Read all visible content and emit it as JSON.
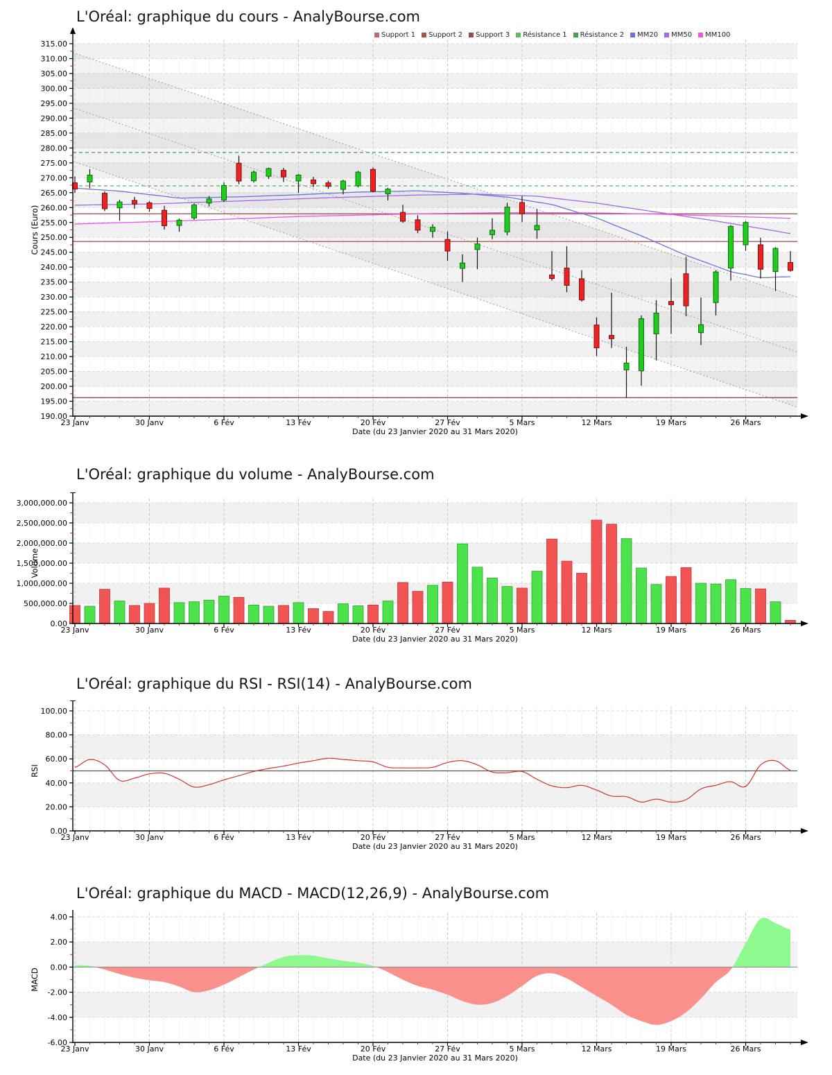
{
  "page": {
    "background": "#ffffff",
    "source_site": "AnalyBourse.com"
  },
  "chart_data": [
    {
      "type": "candlestick",
      "title": "L'Oréal: graphique du cours - AnalyBourse.com",
      "ylabel": "Cours (Euro)",
      "xlabel": "Date (du 23 Janvier 2020 au 31 Mars 2020)",
      "ylim": [
        190,
        315
      ],
      "y_step": 5,
      "y_minor_step": 2.5,
      "stripe_phase": 0,
      "x_tick_labels": [
        "23 Janv",
        "30 Janv",
        "6 Fév",
        "13 Fév",
        "20 Fév",
        "27 Fév",
        "5 Mars",
        "12 Mars",
        "19 Mars",
        "26 Mars"
      ],
      "x_tick_idx": [
        0,
        5,
        10,
        15,
        20,
        25,
        30,
        35,
        40,
        45
      ],
      "dates": [
        "23/01",
        "24/01",
        "27/01",
        "28/01",
        "29/01",
        "30/01",
        "31/01",
        "03/02",
        "04/02",
        "05/02",
        "06/02",
        "07/02",
        "10/02",
        "11/02",
        "12/02",
        "13/02",
        "14/02",
        "17/02",
        "18/02",
        "19/02",
        "20/02",
        "21/02",
        "24/02",
        "25/02",
        "26/02",
        "27/02",
        "28/02",
        "02/03",
        "03/03",
        "04/03",
        "05/03",
        "06/03",
        "09/03",
        "10/03",
        "11/03",
        "12/03",
        "13/03",
        "16/03",
        "17/03",
        "18/03",
        "19/03",
        "20/03",
        "23/03",
        "24/03",
        "25/03",
        "26/03",
        "27/03",
        "30/03",
        "31/03"
      ],
      "candles_ohlc": [
        [
          268.3,
          270.4,
          264.9,
          266.2
        ],
        [
          268.6,
          272.9,
          266.5,
          270.9
        ],
        [
          264.8,
          265.4,
          258.8,
          259.6
        ],
        [
          259.9,
          262.6,
          255.6,
          261.9
        ],
        [
          262.4,
          263.6,
          259.6,
          261.2
        ],
        [
          261.6,
          262.1,
          258.6,
          259.7
        ],
        [
          259.1,
          260.6,
          252.6,
          253.9
        ],
        [
          254.0,
          256.3,
          251.9,
          255.8
        ],
        [
          256.5,
          261.4,
          255.9,
          260.9
        ],
        [
          261.5,
          263.9,
          260.4,
          262.9
        ],
        [
          262.5,
          268.4,
          261.9,
          267.4
        ],
        [
          274.9,
          277.4,
          267.9,
          268.9
        ],
        [
          269.0,
          272.4,
          268.4,
          271.9
        ],
        [
          270.5,
          273.4,
          269.6,
          273.1
        ],
        [
          272.5,
          273.3,
          268.6,
          270.3
        ],
        [
          268.9,
          271.3,
          264.9,
          270.9
        ],
        [
          269.3,
          270.3,
          266.9,
          268.0
        ],
        [
          268.3,
          269.0,
          266.3,
          267.1
        ],
        [
          266.1,
          269.3,
          264.4,
          268.9
        ],
        [
          267.3,
          272.3,
          266.8,
          271.9
        ],
        [
          272.8,
          273.4,
          265.1,
          265.5
        ],
        [
          264.6,
          266.6,
          262.4,
          266.2
        ],
        [
          258.4,
          260.9,
          254.9,
          255.4
        ],
        [
          255.9,
          257.4,
          251.4,
          252.4
        ],
        [
          252.0,
          254.4,
          249.9,
          253.4
        ],
        [
          249.3,
          252.0,
          242.1,
          245.4
        ],
        [
          239.6,
          244.3,
          235.0,
          241.4
        ],
        [
          245.9,
          249.9,
          239.3,
          247.8
        ],
        [
          250.9,
          256.4,
          249.4,
          252.4
        ],
        [
          251.8,
          261.6,
          250.7,
          260.2
        ],
        [
          261.7,
          263.8,
          255.1,
          257.9
        ],
        [
          252.5,
          259.5,
          249.5,
          254.0
        ],
        [
          237.4,
          245.4,
          235.5,
          236.2
        ],
        [
          239.7,
          247.0,
          231.6,
          233.9
        ],
        [
          236.1,
          239.0,
          228.4,
          229.0
        ],
        [
          220.6,
          223.1,
          210.2,
          212.9
        ],
        [
          217.1,
          231.4,
          212.9,
          216.0
        ],
        [
          205.5,
          213.3,
          196.2,
          207.8
        ],
        [
          205.2,
          223.8,
          200.2,
          222.7
        ],
        [
          217.6,
          228.9,
          208.7,
          224.6
        ],
        [
          228.5,
          236.2,
          217.6,
          227.4
        ],
        [
          237.8,
          243.5,
          223.5,
          227.0
        ],
        [
          218.0,
          229.8,
          213.9,
          220.7
        ],
        [
          228.1,
          239.0,
          223.8,
          238.4
        ],
        [
          239.7,
          254.1,
          235.5,
          253.7
        ],
        [
          247.5,
          255.4,
          245.5,
          255.0
        ],
        [
          247.5,
          249.9,
          236.2,
          239.3
        ],
        [
          238.5,
          246.7,
          232.0,
          246.3
        ],
        [
          241.6,
          245.4,
          238.5,
          238.9
        ]
      ],
      "colors": {
        "up": "#1ecc1e",
        "up_stroke": "#0d6e0d",
        "down": "#ee2222",
        "down_stroke": "#7c1010",
        "wick": "#111111"
      },
      "legend": [
        {
          "label": "Support 1",
          "color": "#c06a6a"
        },
        {
          "label": "Support 2",
          "color": "#9e5555"
        },
        {
          "label": "Support 3",
          "color": "#8a4f4f"
        },
        {
          "label": "Résistance 1",
          "color": "#5dc05d"
        },
        {
          "label": "Résistance 2",
          "color": "#46a046"
        },
        {
          "label": "MM20",
          "color": "#6673dd"
        },
        {
          "label": "MM50",
          "color": "#a468e8"
        },
        {
          "label": "MM100",
          "color": "#ea55ea"
        }
      ],
      "support_lines": [
        {
          "name": "Support 1",
          "value": 248.6,
          "color": "#bb5f5f"
        },
        {
          "name": "Support 2",
          "value": 257.9,
          "color": "#a35454"
        },
        {
          "name": "Support 3",
          "value": 196.2,
          "color": "#8c5252"
        }
      ],
      "resistance_lines": [
        {
          "name": "Résistance 1",
          "value": 267.3,
          "color": "#61bb61"
        },
        {
          "name": "Résistance 2",
          "value": 278.5,
          "color": "#4da84d"
        }
      ],
      "moving_averages": [
        {
          "name": "MM20",
          "color": "#6673dd",
          "points": [
            [
              1,
              266.5
            ],
            [
              4,
              265.5
            ],
            [
              8,
              263.2
            ],
            [
              12,
              263.6
            ],
            [
              16,
              264.3
            ],
            [
              20,
              265.2
            ],
            [
              24,
              265.6
            ],
            [
              27,
              264.8
            ],
            [
              30,
              263.5
            ],
            [
              33,
              261.0
            ],
            [
              36,
              256.5
            ],
            [
              39,
              250.5
            ],
            [
              42,
              244.0
            ],
            [
              45,
              238.5
            ],
            [
              47,
              236.5
            ],
            [
              49,
              236.8
            ]
          ]
        },
        {
          "name": "MM50",
          "color": "#a468e8",
          "points": [
            [
              1,
              260.8
            ],
            [
              6,
              261.2
            ],
            [
              12,
              262.2
            ],
            [
              18,
              263.3
            ],
            [
              24,
              264.2
            ],
            [
              28,
              264.5
            ],
            [
              32,
              263.8
            ],
            [
              36,
              261.5
            ],
            [
              40,
              258.5
            ],
            [
              44,
              255.5
            ],
            [
              47,
              253.0
            ],
            [
              49,
              251.3
            ]
          ]
        },
        {
          "name": "MM100",
          "color": "#ea55ea",
          "points": [
            [
              1,
              254.5
            ],
            [
              8,
              255.5
            ],
            [
              16,
              257.0
            ],
            [
              24,
              257.9
            ],
            [
              30,
              258.3
            ],
            [
              36,
              258.2
            ],
            [
              40,
              257.8
            ],
            [
              44,
              257.2
            ],
            [
              49,
              256.4
            ]
          ]
        }
      ],
      "trend_channel": {
        "upper_start": 312,
        "upper_end": 230,
        "mid_start": 293.5,
        "mid_end": 211.5,
        "lower_start": 275.5,
        "lower_end": 193,
        "line_color": "#aaaaaa",
        "fill": "rgba(140,140,140,0.10)"
      }
    },
    {
      "type": "bar",
      "title": "L'Oréal: graphique du volume - AnalyBourse.com",
      "ylabel": "Volume",
      "xlabel": "Date (du 23 Janvier 2020 au 31 Mars 2020)",
      "ylim": [
        0,
        3000000
      ],
      "y_step": 500000,
      "y_minor_step": 250000,
      "stripe_phase": 1,
      "x_tick_labels": [
        "23 Janv",
        "30 Janv",
        "6 Fév",
        "13 Fév",
        "20 Fév",
        "27 Fév",
        "5 Mars",
        "12 Mars",
        "19 Mars",
        "26 Mars"
      ],
      "x_tick_idx": [
        0,
        5,
        10,
        15,
        20,
        25,
        30,
        35,
        40,
        45
      ],
      "values": [
        450000,
        430000,
        850000,
        560000,
        450000,
        500000,
        880000,
        520000,
        540000,
        580000,
        680000,
        650000,
        460000,
        430000,
        450000,
        520000,
        370000,
        300000,
        490000,
        440000,
        460000,
        560000,
        1020000,
        800000,
        950000,
        1030000,
        1980000,
        1400000,
        1130000,
        920000,
        880000,
        1300000,
        2100000,
        1550000,
        1250000,
        2570000,
        2470000,
        2110000,
        1380000,
        970000,
        1170000,
        1390000,
        1000000,
        980000,
        1090000,
        870000,
        860000,
        540000,
        80000
      ],
      "colors": {
        "up": "#4ce24c",
        "up_stroke": "#2aa82a",
        "down": "#f25454",
        "down_stroke": "#c43535"
      }
    },
    {
      "type": "line",
      "title": "L'Oréal: graphique du RSI - RSI(14) - AnalyBourse.com",
      "ylabel": "RSI",
      "xlabel": "Date (du 23 Janvier 2020 au 31 Mars 2020)",
      "ylim": [
        0,
        100
      ],
      "y_step": 20,
      "y_minor_step": 10,
      "stripe_phase": 1,
      "x_tick_labels": [
        "23 Janv",
        "30 Janv",
        "6 Fév",
        "13 Fév",
        "20 Fév",
        "27 Fév",
        "5 Mars",
        "12 Mars",
        "19 Mars",
        "26 Mars"
      ],
      "x_tick_idx": [
        0,
        5,
        10,
        15,
        20,
        25,
        30,
        35,
        40,
        45
      ],
      "midline": 50,
      "midline_color": "#555555",
      "line_color": "#cc3333",
      "values": [
        53,
        59.5,
        55,
        42,
        44,
        47.5,
        48,
        43,
        36.5,
        38.5,
        42.5,
        46,
        49.5,
        52,
        54,
        56.5,
        58.5,
        60.5,
        59.5,
        58.5,
        57.5,
        53,
        52.5,
        52.5,
        53,
        57,
        58.5,
        55,
        49,
        48.5,
        49.5,
        43,
        37.5,
        36,
        38,
        34,
        29,
        28.5,
        24,
        26.5,
        24,
        26,
        35,
        38,
        41,
        37,
        55,
        58.5,
        50.5
      ]
    },
    {
      "type": "area",
      "title": "L'Oréal: graphique du MACD - MACD(12,26,9) - AnalyBourse.com",
      "ylabel": "MACD",
      "xlabel": "Date (du 23 Janvier 2020 au 31 Mars 2020)",
      "ylim": [
        -6,
        4
      ],
      "y_step": 2,
      "y_minor_step": 1,
      "stripe_phase": 0,
      "x_tick_labels": [
        "23 Janv",
        "30 Janv",
        "6 Fév",
        "13 Fév",
        "20 Fév",
        "27 Fév",
        "5 Mars",
        "12 Mars",
        "19 Mars",
        "26 Mars"
      ],
      "x_tick_idx": [
        0,
        5,
        10,
        15,
        20,
        25,
        30,
        35,
        40,
        45
      ],
      "pos_color": "#8ef98e",
      "neg_color": "#f9908c",
      "zero_line_color": "#888888",
      "values": [
        0.15,
        0.1,
        -0.2,
        -0.55,
        -0.85,
        -1.05,
        -1.2,
        -1.55,
        -2.0,
        -1.85,
        -1.4,
        -0.8,
        -0.2,
        0.35,
        0.8,
        0.95,
        0.9,
        0.7,
        0.5,
        0.35,
        0.1,
        -0.4,
        -1.0,
        -1.5,
        -1.8,
        -2.2,
        -2.7,
        -3.0,
        -2.85,
        -2.3,
        -1.5,
        -0.7,
        -0.5,
        -0.9,
        -1.6,
        -2.3,
        -3.0,
        -3.8,
        -4.3,
        -4.6,
        -4.3,
        -3.6,
        -2.5,
        -1.2,
        -0.2,
        1.9,
        3.85,
        3.5,
        3.0
      ]
    }
  ]
}
